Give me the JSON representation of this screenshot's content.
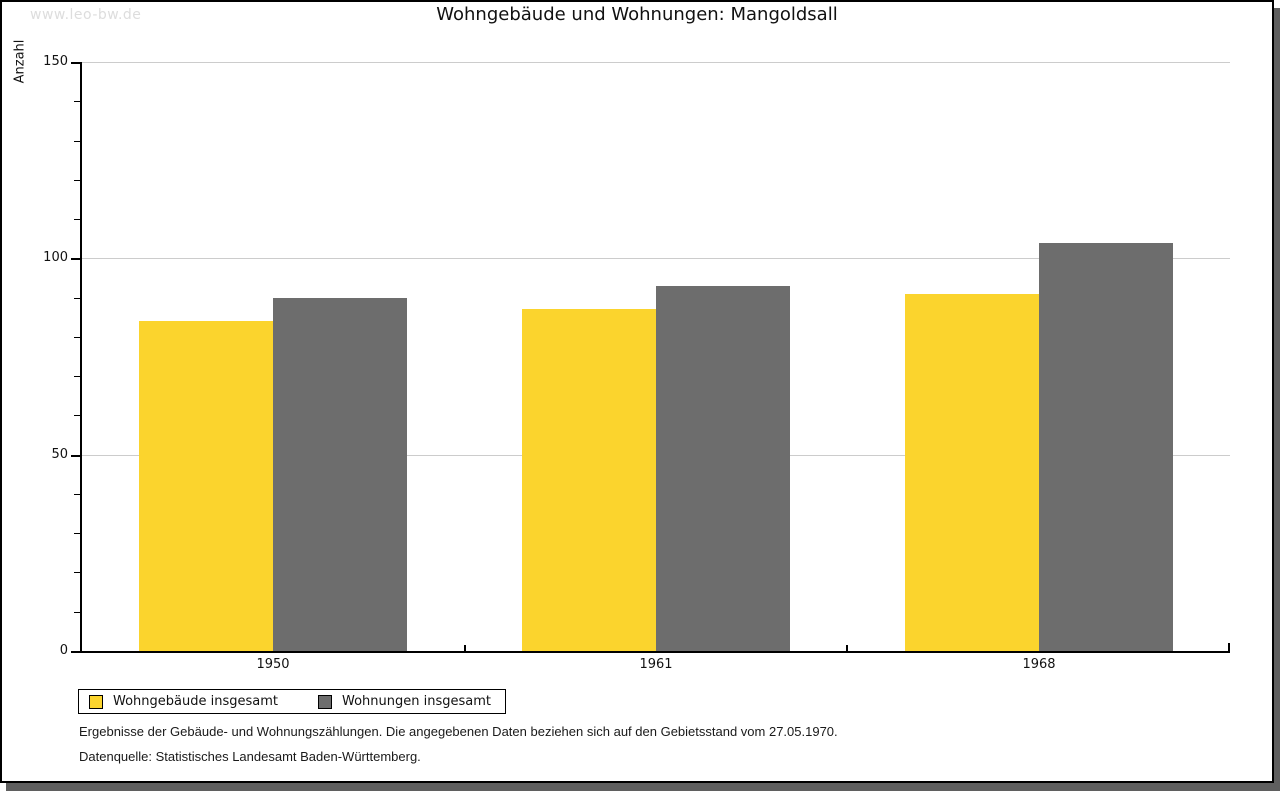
{
  "page": {
    "watermark": "www.leo-bw.de"
  },
  "chart_data": {
    "type": "bar",
    "title": "Wohngebäude und Wohnungen: Mangoldsall",
    "xlabel": "",
    "ylabel": "Anzahl",
    "categories": [
      "1950",
      "1961",
      "1968"
    ],
    "series": [
      {
        "name": "Wohngebäude insgesamt",
        "color": "#FBD42D",
        "values": [
          84,
          87,
          91
        ]
      },
      {
        "name": "Wohnungen insgesamt",
        "color": "#6D6D6D",
        "values": [
          90,
          93,
          104
        ]
      }
    ],
    "ylim": [
      0,
      150
    ],
    "yticks": [
      0,
      50,
      100,
      150
    ],
    "minor_tick_step": 10,
    "grid": true,
    "grid_color": "#CCCCCC",
    "axis_color": "#000000",
    "legend_position": "bottom-left"
  },
  "footnotes": [
    "Ergebnisse der Gebäude- und Wohnungszählungen. Die angegebenen Daten beziehen sich auf den Gebietsstand vom 27.05.1970.",
    "Datenquelle: Statistisches Landesamt Baden-Württemberg."
  ]
}
